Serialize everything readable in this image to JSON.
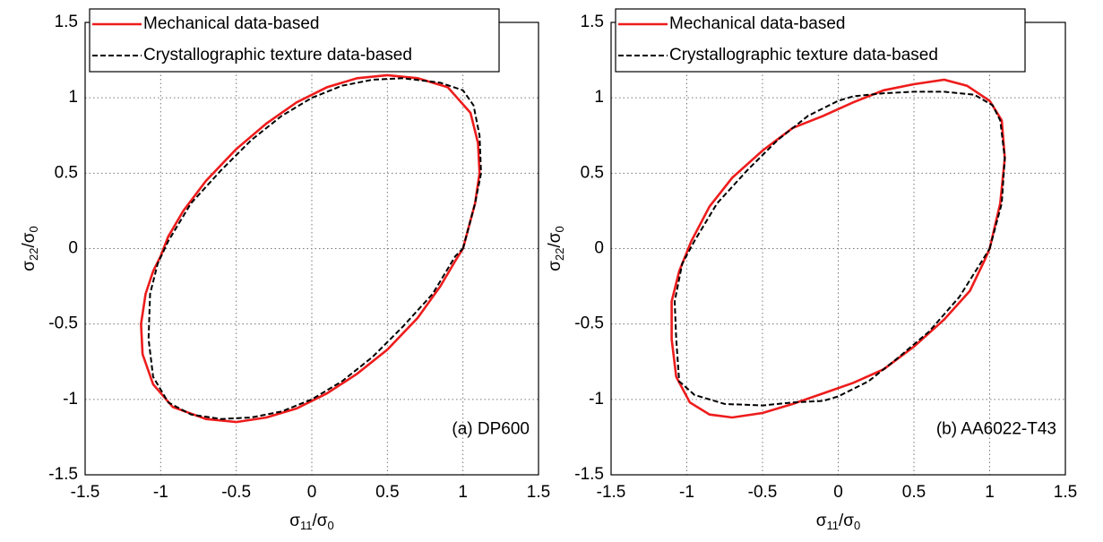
{
  "chart_data": [
    {
      "type": "line",
      "xlabel": [
        "σ",
        "11",
        "/σ",
        "0"
      ],
      "ylabel": [
        "σ",
        "22",
        "/σ",
        "0"
      ],
      "annotation": "(a) DP600",
      "xlim": [
        -1.5,
        1.5
      ],
      "ylim": [
        -1.5,
        1.5
      ],
      "xticks": [
        -1.5,
        -1,
        -0.5,
        0,
        0.5,
        1,
        1.5
      ],
      "yticks": [
        -1.5,
        -1,
        -0.5,
        0,
        0.5,
        1,
        1.5
      ],
      "grid": true,
      "legend": "upper left",
      "series": [
        {
          "name": "Mechanical data-based",
          "color": "#ee1c1c",
          "dash": "solid",
          "x": [
            1,
            1.08,
            1.11,
            1.1,
            1.05,
            0.9,
            0.7,
            0.5,
            0.3,
            0.1,
            -0.1,
            -0.3,
            -0.5,
            -0.7,
            -0.85,
            -0.95,
            -1,
            -1.05,
            -1.1,
            -1.13,
            -1.12,
            -1.05,
            -0.92,
            -0.7,
            -0.5,
            -0.3,
            -0.1,
            0.1,
            0.3,
            0.5,
            0.7,
            0.85,
            0.95,
            1
          ],
          "values": [
            0,
            0.3,
            0.5,
            0.7,
            0.9,
            1.07,
            1.13,
            1.15,
            1.13,
            1.07,
            0.97,
            0.83,
            0.66,
            0.45,
            0.25,
            0.08,
            -0.05,
            -0.15,
            -0.3,
            -0.5,
            -0.7,
            -0.9,
            -1.05,
            -1.13,
            -1.15,
            -1.12,
            -1.06,
            -0.96,
            -0.83,
            -0.67,
            -0.46,
            -0.25,
            -0.08,
            0
          ]
        },
        {
          "name": "Crystallographic texture data-based",
          "color": "#000000",
          "dash": "dashed",
          "x": [
            1,
            1.08,
            1.12,
            1.11,
            1.07,
            1,
            0.85,
            0.6,
            0.4,
            0.2,
            0,
            -0.2,
            -0.4,
            -0.6,
            -0.8,
            -0.95,
            -1.02,
            -1.07,
            -1.08,
            -1.05,
            -0.95,
            -0.8,
            -0.6,
            -0.4,
            -0.2,
            0,
            0.2,
            0.4,
            0.6,
            0.8,
            0.95,
            1
          ],
          "values": [
            0,
            0.3,
            0.5,
            0.75,
            0.95,
            1.05,
            1.1,
            1.13,
            1.12,
            1.08,
            1,
            0.88,
            0.72,
            0.52,
            0.3,
            0.05,
            -0.1,
            -0.3,
            -0.6,
            -0.85,
            -1.02,
            -1.1,
            -1.13,
            -1.12,
            -1.08,
            -1,
            -0.88,
            -0.72,
            -0.52,
            -0.3,
            -0.05,
            0
          ]
        }
      ]
    },
    {
      "type": "line",
      "xlabel": [
        "σ",
        "11",
        "/σ",
        "0"
      ],
      "ylabel": [
        "σ",
        "22",
        "/σ",
        "0"
      ],
      "annotation": "(b) AA6022-T43",
      "xlim": [
        -1.5,
        1.5
      ],
      "ylim": [
        -1.5,
        1.5
      ],
      "xticks": [
        -1.5,
        -1,
        -0.5,
        0,
        0.5,
        1,
        1.5
      ],
      "yticks": [
        -1.5,
        -1,
        -0.5,
        0,
        0.5,
        1,
        1.5
      ],
      "grid": true,
      "legend": "upper left",
      "series": [
        {
          "name": "Mechanical data-based",
          "color": "#ee1c1c",
          "dash": "solid",
          "x": [
            1,
            1.07,
            1.1,
            1.08,
            1,
            0.85,
            0.7,
            0.5,
            0.3,
            0.1,
            -0.1,
            -0.3,
            -0.5,
            -0.7,
            -0.85,
            -0.97,
            -1.05,
            -1.1,
            -1.1,
            -1.07,
            -0.98,
            -0.85,
            -0.7,
            -0.5,
            -0.3,
            -0.1,
            0.1,
            0.3,
            0.5,
            0.7,
            0.87,
            0.97,
            1
          ],
          "values": [
            0,
            0.3,
            0.6,
            0.85,
            0.98,
            1.08,
            1.12,
            1.09,
            1.05,
            0.97,
            0.88,
            0.8,
            0.65,
            0.47,
            0.28,
            0.05,
            -0.15,
            -0.35,
            -0.6,
            -0.85,
            -1.02,
            -1.1,
            -1.12,
            -1.09,
            -1.03,
            -0.96,
            -0.89,
            -0.8,
            -0.65,
            -0.47,
            -0.28,
            -0.07,
            0
          ]
        },
        {
          "name": "Crystallographic texture data-based",
          "color": "#000000",
          "dash": "dashed",
          "x": [
            1,
            1.08,
            1.1,
            1.07,
            1.02,
            0.9,
            0.7,
            0.5,
            0.3,
            0.1,
            0,
            -0.2,
            -0.4,
            -0.6,
            -0.8,
            -0.95,
            -1.03,
            -1.08,
            -1.07,
            -1.05,
            -0.95,
            -0.75,
            -0.5,
            -0.3,
            -0.1,
            0,
            0.2,
            0.4,
            0.6,
            0.8,
            0.95,
            1
          ],
          "values": [
            0,
            0.3,
            0.6,
            0.85,
            0.95,
            1.02,
            1.04,
            1.04,
            1.03,
            1.01,
            0.98,
            0.88,
            0.72,
            0.52,
            0.3,
            0.05,
            -0.1,
            -0.35,
            -0.6,
            -0.88,
            -0.97,
            -1.03,
            -1.04,
            -1.02,
            -1.01,
            -0.98,
            -0.88,
            -0.72,
            -0.55,
            -0.32,
            -0.08,
            0
          ]
        }
      ]
    }
  ]
}
